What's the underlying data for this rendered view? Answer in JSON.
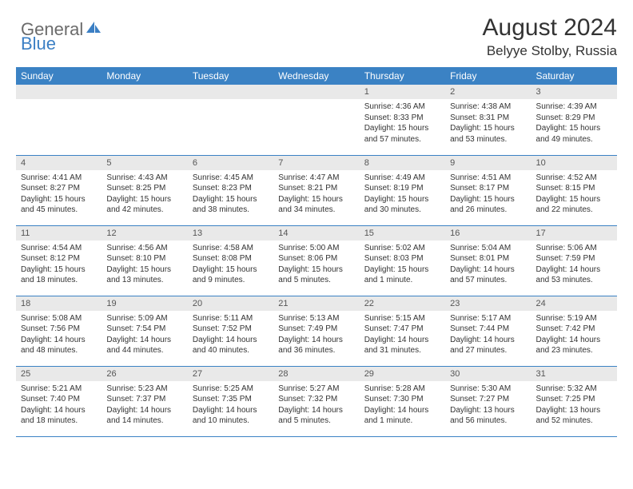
{
  "brand": {
    "part1": "General",
    "part2": "Blue"
  },
  "title": "August 2024",
  "location": "Belyye Stolby, Russia",
  "colors": {
    "header_bg": "#3b82c4",
    "header_fg": "#ffffff",
    "daynum_bg": "#e9e9e9",
    "text": "#333333",
    "logo_gray": "#6b6b6b",
    "logo_blue": "#3b7fc4"
  },
  "typography": {
    "title_fontsize": 30,
    "location_fontsize": 17,
    "header_fontsize": 12,
    "daynum_fontsize": 11,
    "body_fontsize": 10
  },
  "dow": [
    "Sunday",
    "Monday",
    "Tuesday",
    "Wednesday",
    "Thursday",
    "Friday",
    "Saturday"
  ],
  "weeks": [
    [
      null,
      null,
      null,
      null,
      {
        "n": "1",
        "sr": "Sunrise: 4:36 AM",
        "ss": "Sunset: 8:33 PM",
        "d1": "Daylight: 15 hours",
        "d2": "and 57 minutes."
      },
      {
        "n": "2",
        "sr": "Sunrise: 4:38 AM",
        "ss": "Sunset: 8:31 PM",
        "d1": "Daylight: 15 hours",
        "d2": "and 53 minutes."
      },
      {
        "n": "3",
        "sr": "Sunrise: 4:39 AM",
        "ss": "Sunset: 8:29 PM",
        "d1": "Daylight: 15 hours",
        "d2": "and 49 minutes."
      }
    ],
    [
      {
        "n": "4",
        "sr": "Sunrise: 4:41 AM",
        "ss": "Sunset: 8:27 PM",
        "d1": "Daylight: 15 hours",
        "d2": "and 45 minutes."
      },
      {
        "n": "5",
        "sr": "Sunrise: 4:43 AM",
        "ss": "Sunset: 8:25 PM",
        "d1": "Daylight: 15 hours",
        "d2": "and 42 minutes."
      },
      {
        "n": "6",
        "sr": "Sunrise: 4:45 AM",
        "ss": "Sunset: 8:23 PM",
        "d1": "Daylight: 15 hours",
        "d2": "and 38 minutes."
      },
      {
        "n": "7",
        "sr": "Sunrise: 4:47 AM",
        "ss": "Sunset: 8:21 PM",
        "d1": "Daylight: 15 hours",
        "d2": "and 34 minutes."
      },
      {
        "n": "8",
        "sr": "Sunrise: 4:49 AM",
        "ss": "Sunset: 8:19 PM",
        "d1": "Daylight: 15 hours",
        "d2": "and 30 minutes."
      },
      {
        "n": "9",
        "sr": "Sunrise: 4:51 AM",
        "ss": "Sunset: 8:17 PM",
        "d1": "Daylight: 15 hours",
        "d2": "and 26 minutes."
      },
      {
        "n": "10",
        "sr": "Sunrise: 4:52 AM",
        "ss": "Sunset: 8:15 PM",
        "d1": "Daylight: 15 hours",
        "d2": "and 22 minutes."
      }
    ],
    [
      {
        "n": "11",
        "sr": "Sunrise: 4:54 AM",
        "ss": "Sunset: 8:12 PM",
        "d1": "Daylight: 15 hours",
        "d2": "and 18 minutes."
      },
      {
        "n": "12",
        "sr": "Sunrise: 4:56 AM",
        "ss": "Sunset: 8:10 PM",
        "d1": "Daylight: 15 hours",
        "d2": "and 13 minutes."
      },
      {
        "n": "13",
        "sr": "Sunrise: 4:58 AM",
        "ss": "Sunset: 8:08 PM",
        "d1": "Daylight: 15 hours",
        "d2": "and 9 minutes."
      },
      {
        "n": "14",
        "sr": "Sunrise: 5:00 AM",
        "ss": "Sunset: 8:06 PM",
        "d1": "Daylight: 15 hours",
        "d2": "and 5 minutes."
      },
      {
        "n": "15",
        "sr": "Sunrise: 5:02 AM",
        "ss": "Sunset: 8:03 PM",
        "d1": "Daylight: 15 hours",
        "d2": "and 1 minute."
      },
      {
        "n": "16",
        "sr": "Sunrise: 5:04 AM",
        "ss": "Sunset: 8:01 PM",
        "d1": "Daylight: 14 hours",
        "d2": "and 57 minutes."
      },
      {
        "n": "17",
        "sr": "Sunrise: 5:06 AM",
        "ss": "Sunset: 7:59 PM",
        "d1": "Daylight: 14 hours",
        "d2": "and 53 minutes."
      }
    ],
    [
      {
        "n": "18",
        "sr": "Sunrise: 5:08 AM",
        "ss": "Sunset: 7:56 PM",
        "d1": "Daylight: 14 hours",
        "d2": "and 48 minutes."
      },
      {
        "n": "19",
        "sr": "Sunrise: 5:09 AM",
        "ss": "Sunset: 7:54 PM",
        "d1": "Daylight: 14 hours",
        "d2": "and 44 minutes."
      },
      {
        "n": "20",
        "sr": "Sunrise: 5:11 AM",
        "ss": "Sunset: 7:52 PM",
        "d1": "Daylight: 14 hours",
        "d2": "and 40 minutes."
      },
      {
        "n": "21",
        "sr": "Sunrise: 5:13 AM",
        "ss": "Sunset: 7:49 PM",
        "d1": "Daylight: 14 hours",
        "d2": "and 36 minutes."
      },
      {
        "n": "22",
        "sr": "Sunrise: 5:15 AM",
        "ss": "Sunset: 7:47 PM",
        "d1": "Daylight: 14 hours",
        "d2": "and 31 minutes."
      },
      {
        "n": "23",
        "sr": "Sunrise: 5:17 AM",
        "ss": "Sunset: 7:44 PM",
        "d1": "Daylight: 14 hours",
        "d2": "and 27 minutes."
      },
      {
        "n": "24",
        "sr": "Sunrise: 5:19 AM",
        "ss": "Sunset: 7:42 PM",
        "d1": "Daylight: 14 hours",
        "d2": "and 23 minutes."
      }
    ],
    [
      {
        "n": "25",
        "sr": "Sunrise: 5:21 AM",
        "ss": "Sunset: 7:40 PM",
        "d1": "Daylight: 14 hours",
        "d2": "and 18 minutes."
      },
      {
        "n": "26",
        "sr": "Sunrise: 5:23 AM",
        "ss": "Sunset: 7:37 PM",
        "d1": "Daylight: 14 hours",
        "d2": "and 14 minutes."
      },
      {
        "n": "27",
        "sr": "Sunrise: 5:25 AM",
        "ss": "Sunset: 7:35 PM",
        "d1": "Daylight: 14 hours",
        "d2": "and 10 minutes."
      },
      {
        "n": "28",
        "sr": "Sunrise: 5:27 AM",
        "ss": "Sunset: 7:32 PM",
        "d1": "Daylight: 14 hours",
        "d2": "and 5 minutes."
      },
      {
        "n": "29",
        "sr": "Sunrise: 5:28 AM",
        "ss": "Sunset: 7:30 PM",
        "d1": "Daylight: 14 hours",
        "d2": "and 1 minute."
      },
      {
        "n": "30",
        "sr": "Sunrise: 5:30 AM",
        "ss": "Sunset: 7:27 PM",
        "d1": "Daylight: 13 hours",
        "d2": "and 56 minutes."
      },
      {
        "n": "31",
        "sr": "Sunrise: 5:32 AM",
        "ss": "Sunset: 7:25 PM",
        "d1": "Daylight: 13 hours",
        "d2": "and 52 minutes."
      }
    ]
  ]
}
